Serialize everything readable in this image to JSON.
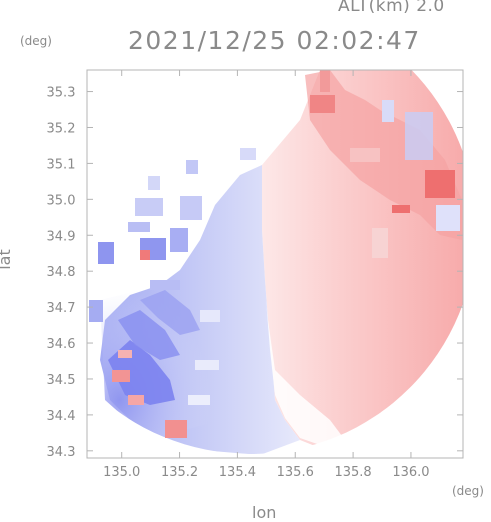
{
  "header": {
    "altitude_label": "ALT(km) 2.0",
    "timestamp": "2021/12/25 02:02:47"
  },
  "axes": {
    "x_label": "lon",
    "y_label": "lat",
    "x_unit": "(deg)",
    "y_unit": "(deg)",
    "x_ticks": [
      "135.0",
      "135.2",
      "135.4",
      "135.6",
      "135.8",
      "136.0"
    ],
    "y_ticks": [
      "35.3",
      "35.2",
      "35.1",
      "35.0",
      "34.9",
      "34.8",
      "34.7",
      "34.6",
      "34.5",
      "34.4",
      "34.3"
    ],
    "xlim": [
      134.88,
      136.18
    ],
    "ylim": [
      34.28,
      35.36
    ]
  },
  "colors": {
    "approaching": "#7b82f0",
    "receding": "#f07a7a",
    "frame": "#b4b4b4",
    "text": "#8a8a8a"
  }
}
